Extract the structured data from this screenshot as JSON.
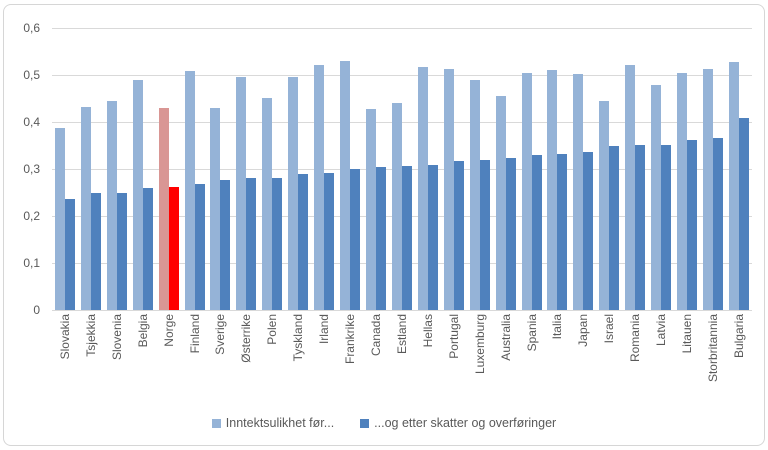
{
  "chart_data": {
    "type": "bar",
    "title": "",
    "xlabel": "",
    "ylabel": "",
    "categories": [
      "Slovakia",
      "Tsjekkia",
      "Slovenia",
      "Belgia",
      "Norge",
      "Finland",
      "Sverige",
      "Østerrike",
      "Polen",
      "Tyskland",
      "Irland",
      "Frankrike",
      "Canada",
      "Estland",
      "Hellas",
      "Portugal",
      "Luxemburg",
      "Australia",
      "Spania",
      "Italia",
      "Japan",
      "Israel",
      "Romania",
      "Latvia",
      "Litauen",
      "Storbritannia",
      "Bulgaria"
    ],
    "series": [
      {
        "name": "Inntektsulikhet før...",
        "color": "#95B3D7",
        "values": [
          0.388,
          0.433,
          0.444,
          0.49,
          0.43,
          0.509,
          0.429,
          0.495,
          0.452,
          0.495,
          0.521,
          0.529,
          0.428,
          0.441,
          0.518,
          0.513,
          0.489,
          0.455,
          0.505,
          0.511,
          0.502,
          0.445,
          0.522,
          0.479,
          0.504,
          0.513,
          0.528
        ]
      },
      {
        "name": "...og etter skatter og overføringer",
        "color": "#4F81BD",
        "values": [
          0.237,
          0.248,
          0.249,
          0.259,
          0.262,
          0.268,
          0.276,
          0.28,
          0.281,
          0.289,
          0.292,
          0.301,
          0.304,
          0.306,
          0.308,
          0.317,
          0.32,
          0.324,
          0.33,
          0.331,
          0.337,
          0.349,
          0.351,
          0.352,
          0.362,
          0.366,
          0.408
        ]
      }
    ],
    "highlight": {
      "category": "Norge",
      "index": 4,
      "colors": [
        "#D99694",
        "#FF0000"
      ]
    },
    "ylim": [
      0,
      0.6
    ],
    "yticks": [
      0,
      0.1,
      0.2,
      0.3,
      0.4,
      0.5,
      0.6
    ],
    "ytick_labels": [
      "0",
      "0,1",
      "0,2",
      "0,3",
      "0,4",
      "0,5",
      "0,6"
    ],
    "grid": true,
    "gridline_color": "#d9d9d9",
    "legend_position": "bottom"
  }
}
